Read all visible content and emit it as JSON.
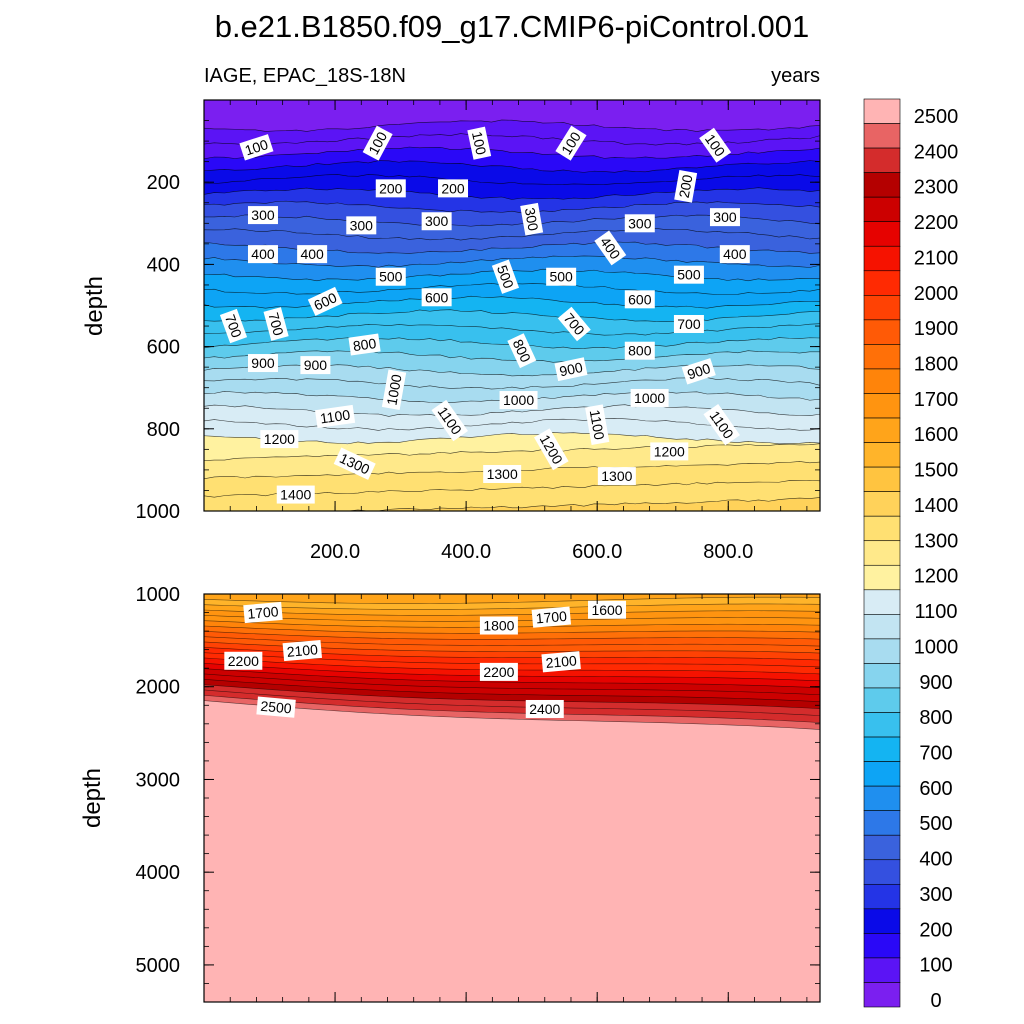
{
  "chart_data": {
    "type": "contour",
    "title": "b.e21.B1850.f09_g17.CMIP6-piControl.001",
    "subtitle_left": "IAGE, EPAC_18S-18N",
    "subtitle_right": "years",
    "xlim": [
      0,
      940
    ],
    "x_ticks": [
      200,
      400,
      600,
      800
    ],
    "x_tick_labels": [
      "200.0",
      "400.0",
      "600.0",
      "800.0"
    ],
    "colorbar": {
      "levels": [
        0,
        100,
        200,
        300,
        400,
        500,
        600,
        700,
        800,
        900,
        1000,
        1100,
        1200,
        1300,
        1400,
        1500,
        1600,
        1700,
        1800,
        1900,
        2000,
        2100,
        2200,
        2300,
        2400,
        2500
      ],
      "colors": [
        "#7b1ff0",
        "#5b14f5",
        "#2a08f7",
        "#0a0ae8",
        "#2434e6",
        "#3450e0",
        "#3a62dd",
        "#2d78e8",
        "#1f8fef",
        "#0da4f5",
        "#14b4f2",
        "#38c0ee",
        "#5ecbec",
        "#86d4ee",
        "#a8dcf0",
        "#c2e4f2",
        "#d8ecf5",
        "#fff2a0",
        "#ffe98a",
        "#ffe072",
        "#ffd25a",
        "#ffc440",
        "#ffb42a",
        "#ffa41a",
        "#ff9410",
        "#ff840a",
        "#ff7008",
        "#ff5a06",
        "#ff4204",
        "#ff2a02",
        "#f61200",
        "#e60200",
        "#cc0000",
        "#b40000",
        "#d42c2c",
        "#e86464",
        "#ffb4b4"
      ],
      "labels": [
        "2500",
        "2400",
        "2300",
        "2200",
        "2100",
        "2000",
        "1900",
        "1800",
        "1700",
        "1600",
        "1500",
        "1400",
        "1300",
        "1200",
        "1100",
        "1000",
        "900",
        "800",
        "700",
        "600",
        "500",
        "400",
        "300",
        "200",
        "100",
        "0"
      ]
    },
    "panels": [
      {
        "name": "upper",
        "ylabel": "depth",
        "ylim": [
          0,
          1000
        ],
        "y_ticks": [
          200,
          400,
          600,
          800,
          1000
        ],
        "y_tick_labels": [
          "200",
          "400",
          "600",
          "800",
          "1000"
        ],
        "contour_labels": [
          {
            "text": "100",
            "x": 80,
            "y": 115,
            "angle": -18
          },
          {
            "text": "100",
            "x": 265,
            "y": 105,
            "angle": -62
          },
          {
            "text": "100",
            "x": 420,
            "y": 105,
            "angle": 78
          },
          {
            "text": "100",
            "x": 560,
            "y": 105,
            "angle": -58
          },
          {
            "text": "100",
            "x": 780,
            "y": 110,
            "angle": 55
          },
          {
            "text": "200",
            "x": 285,
            "y": 215,
            "angle": 0
          },
          {
            "text": "200",
            "x": 380,
            "y": 215,
            "angle": 0
          },
          {
            "text": "200",
            "x": 735,
            "y": 210,
            "angle": -80
          },
          {
            "text": "300",
            "x": 90,
            "y": 280,
            "angle": 0
          },
          {
            "text": "300",
            "x": 240,
            "y": 305,
            "angle": 0
          },
          {
            "text": "300",
            "x": 355,
            "y": 295,
            "angle": 0
          },
          {
            "text": "300",
            "x": 500,
            "y": 290,
            "angle": 80
          },
          {
            "text": "300",
            "x": 665,
            "y": 300,
            "angle": 0
          },
          {
            "text": "300",
            "x": 795,
            "y": 285,
            "angle": 0
          },
          {
            "text": "400",
            "x": 90,
            "y": 375,
            "angle": 0
          },
          {
            "text": "400",
            "x": 165,
            "y": 375,
            "angle": 0
          },
          {
            "text": "400",
            "x": 620,
            "y": 360,
            "angle": 55
          },
          {
            "text": "400",
            "x": 810,
            "y": 375,
            "angle": 0
          },
          {
            "text": "500",
            "x": 285,
            "y": 430,
            "angle": 0
          },
          {
            "text": "500",
            "x": 460,
            "y": 430,
            "angle": 70
          },
          {
            "text": "500",
            "x": 545,
            "y": 430,
            "angle": 0
          },
          {
            "text": "500",
            "x": 740,
            "y": 425,
            "angle": 0
          },
          {
            "text": "600",
            "x": 185,
            "y": 490,
            "angle": -25
          },
          {
            "text": "600",
            "x": 355,
            "y": 480,
            "angle": 0
          },
          {
            "text": "600",
            "x": 665,
            "y": 485,
            "angle": 0
          },
          {
            "text": "700",
            "x": 45,
            "y": 550,
            "angle": 70
          },
          {
            "text": "700",
            "x": 110,
            "y": 545,
            "angle": 75
          },
          {
            "text": "700",
            "x": 565,
            "y": 545,
            "angle": 50
          },
          {
            "text": "700",
            "x": 740,
            "y": 545,
            "angle": 0
          },
          {
            "text": "800",
            "x": 245,
            "y": 595,
            "angle": -8
          },
          {
            "text": "800",
            "x": 485,
            "y": 610,
            "angle": 65
          },
          {
            "text": "800",
            "x": 665,
            "y": 610,
            "angle": 0
          },
          {
            "text": "900",
            "x": 90,
            "y": 640,
            "angle": 0
          },
          {
            "text": "900",
            "x": 170,
            "y": 645,
            "angle": 0
          },
          {
            "text": "900",
            "x": 560,
            "y": 655,
            "angle": -12
          },
          {
            "text": "900",
            "x": 755,
            "y": 660,
            "angle": -18
          },
          {
            "text": "1000",
            "x": 290,
            "y": 705,
            "angle": -80
          },
          {
            "text": "1000",
            "x": 480,
            "y": 730,
            "angle": 0
          },
          {
            "text": "1000",
            "x": 680,
            "y": 725,
            "angle": 0
          },
          {
            "text": "1100",
            "x": 200,
            "y": 770,
            "angle": -8
          },
          {
            "text": "1100",
            "x": 375,
            "y": 780,
            "angle": 55
          },
          {
            "text": "1100",
            "x": 600,
            "y": 790,
            "angle": 80
          },
          {
            "text": "1100",
            "x": 790,
            "y": 790,
            "angle": 55
          },
          {
            "text": "1200",
            "x": 115,
            "y": 825,
            "angle": 0
          },
          {
            "text": "1200",
            "x": 530,
            "y": 850,
            "angle": 60
          },
          {
            "text": "1200",
            "x": 710,
            "y": 855,
            "angle": 0
          },
          {
            "text": "1300",
            "x": 230,
            "y": 885,
            "angle": 25
          },
          {
            "text": "1300",
            "x": 455,
            "y": 910,
            "angle": 0
          },
          {
            "text": "1300",
            "x": 630,
            "y": 915,
            "angle": 0
          },
          {
            "text": "1400",
            "x": 140,
            "y": 960,
            "angle": 0
          }
        ]
      },
      {
        "name": "lower",
        "ylabel": "depth",
        "ylim": [
          1000,
          5400
        ],
        "y_ticks": [
          1000,
          2000,
          3000,
          4000,
          5000
        ],
        "y_tick_labels": [
          "1000",
          "2000",
          "3000",
          "4000",
          "5000"
        ],
        "contour_labels": [
          {
            "text": "1700",
            "x": 90,
            "y": 1200,
            "angle": -5
          },
          {
            "text": "1800",
            "x": 450,
            "y": 1340,
            "angle": 0
          },
          {
            "text": "1700",
            "x": 530,
            "y": 1250,
            "angle": -5
          },
          {
            "text": "1600",
            "x": 615,
            "y": 1170,
            "angle": 0
          },
          {
            "text": "2100",
            "x": 150,
            "y": 1610,
            "angle": -5
          },
          {
            "text": "2200",
            "x": 60,
            "y": 1720,
            "angle": 0
          },
          {
            "text": "2200",
            "x": 450,
            "y": 1840,
            "angle": 0
          },
          {
            "text": "2100",
            "x": 545,
            "y": 1730,
            "angle": -5
          },
          {
            "text": "2500",
            "x": 110,
            "y": 2220,
            "angle": 5
          },
          {
            "text": "2400",
            "x": 520,
            "y": 2240,
            "angle": 0
          }
        ]
      }
    ]
  }
}
